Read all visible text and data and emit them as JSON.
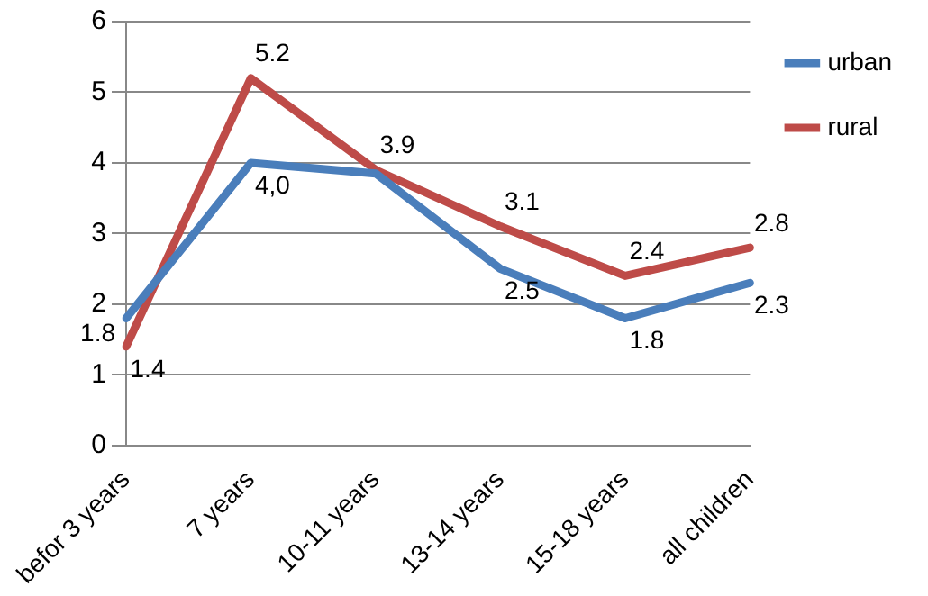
{
  "chart_data": {
    "type": "line",
    "categories": [
      "befor 3 years",
      "7 years",
      "10-11 years",
      "13-14 years",
      "15-18 years",
      "all children"
    ],
    "series": [
      {
        "name": "urban",
        "color": "#4a7ebb",
        "values": [
          1.8,
          4.0,
          3.85,
          2.5,
          1.8,
          2.3
        ],
        "value_labels": [
          "1.8",
          "4,0",
          null,
          "2.5",
          "1.8",
          "2.3"
        ]
      },
      {
        "name": "rural",
        "color": "#be4b48",
        "values": [
          1.4,
          5.2,
          3.9,
          3.1,
          2.4,
          2.8
        ],
        "value_labels": [
          "1.4",
          "5.2",
          "3.9",
          "3.1",
          "2.4",
          "2.8"
        ]
      }
    ],
    "ylim": [
      0,
      6
    ],
    "yticks": [
      0,
      1,
      2,
      3,
      4,
      5,
      6
    ],
    "grid": "y",
    "legend": "right",
    "marker": "none"
  }
}
